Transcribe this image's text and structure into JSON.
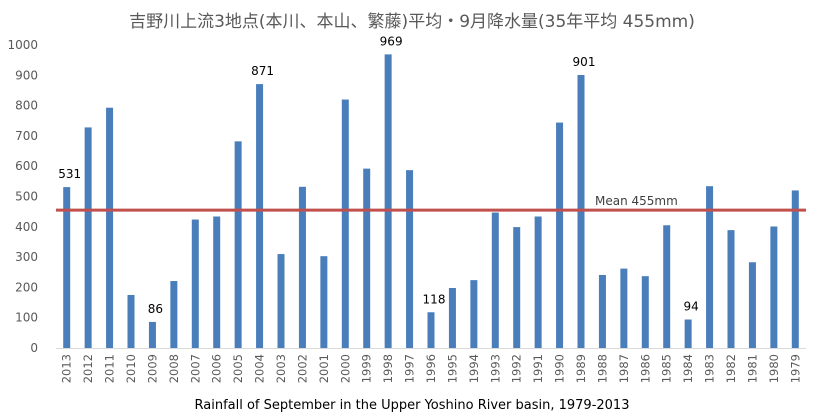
{
  "chart_data": {
    "type": "bar",
    "title": "吉野川上流3地点(本川、本山、繁藤)平均・9月降水量(35年平均 455mm)",
    "caption": "Rainfall of September in the Upper Yoshino River basin, 1979-2013",
    "categories": [
      "2013",
      "2012",
      "2011",
      "2010",
      "2009",
      "2008",
      "2007",
      "2006",
      "2005",
      "2004",
      "2003",
      "2002",
      "2001",
      "2000",
      "1999",
      "1998",
      "1997",
      "1996",
      "1995",
      "1994",
      "1993",
      "1992",
      "1991",
      "1990",
      "1989",
      "1988",
      "1987",
      "1986",
      "1985",
      "1984",
      "1983",
      "1982",
      "1981",
      "1980",
      "1979"
    ],
    "values": [
      531,
      728,
      793,
      175,
      86,
      221,
      424,
      434,
      682,
      871,
      310,
      532,
      303,
      820,
      592,
      969,
      587,
      118,
      198,
      224,
      447,
      399,
      434,
      744,
      901,
      241,
      262,
      237,
      405,
      94,
      534,
      389,
      283,
      401,
      520
    ],
    "ylim": [
      0,
      1000
    ],
    "yticks": [
      0,
      100,
      200,
      300,
      400,
      500,
      600,
      700,
      800,
      900,
      1000
    ],
    "xlabel": "",
    "ylabel": "",
    "grid": false,
    "legend": "none",
    "bar_color": "#4a7ebb",
    "mean": {
      "value": 455,
      "label": "Mean  455mm",
      "color": "#c0504d"
    },
    "data_labels": [
      {
        "category": "2013",
        "text": "531"
      },
      {
        "category": "2009",
        "text": "86"
      },
      {
        "category": "2004",
        "text": "871"
      },
      {
        "category": "1998",
        "text": "969"
      },
      {
        "category": "1996",
        "text": "118"
      },
      {
        "category": "1989",
        "text": "901"
      },
      {
        "category": "1984",
        "text": "94"
      }
    ]
  }
}
